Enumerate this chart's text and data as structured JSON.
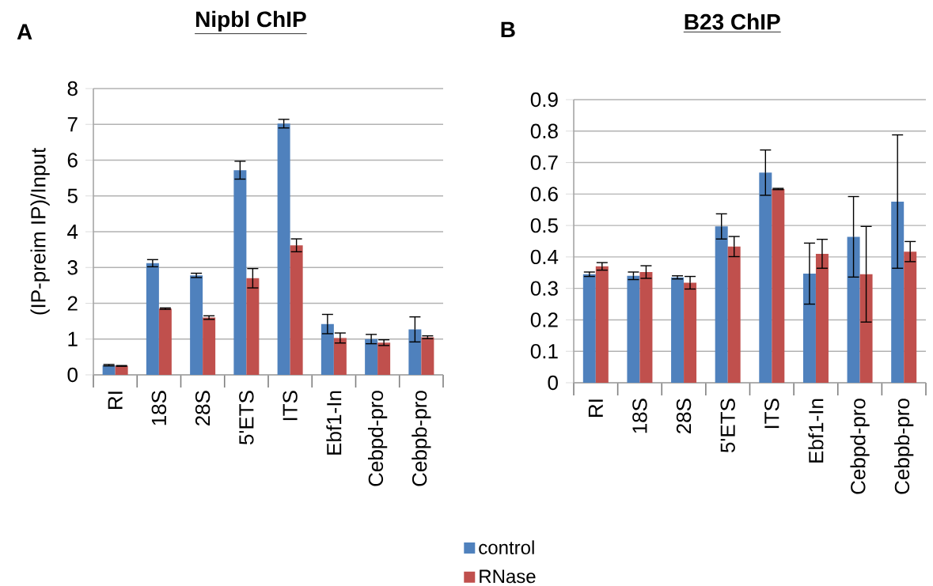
{
  "chart_data": [
    {
      "type": "bar",
      "title": "Nipbl ChIP",
      "ylabel": "(IP-preim IP)/Input",
      "annotations": [
        "A"
      ],
      "categories": [
        "RI",
        "18S",
        "28S",
        "5'ETS",
        "ITS",
        "Ebf1-In",
        "Cebpd-pro",
        "Cebpb-pro"
      ],
      "series": [
        {
          "name": "control",
          "color": "#4f81bd",
          "values": [
            0.27,
            3.12,
            2.78,
            5.72,
            7.02,
            1.42,
            1.0,
            1.27
          ],
          "errors": [
            0.02,
            0.1,
            0.06,
            0.25,
            0.12,
            0.27,
            0.13,
            0.35
          ]
        },
        {
          "name": "RNase",
          "color": "#c0504d",
          "values": [
            0.25,
            1.85,
            1.6,
            2.7,
            3.62,
            1.03,
            0.9,
            1.05
          ],
          "errors": [
            0.01,
            0.02,
            0.05,
            0.27,
            0.18,
            0.14,
            0.08,
            0.04
          ]
        }
      ],
      "ylim": [
        0,
        8
      ],
      "yticks": [
        0,
        1,
        2,
        3,
        4,
        5,
        6,
        7,
        8
      ],
      "grid": "y",
      "legend": "bottom"
    },
    {
      "type": "bar",
      "title": "B23 ChIP",
      "annotations": [
        "B"
      ],
      "categories": [
        "RI",
        "18S",
        "28S",
        "5'ETS",
        "ITS",
        "Ebf1-In",
        "Cebpd-pro",
        "Cebpb-pro"
      ],
      "series": [
        {
          "color": "#4f81bd",
          "values": [
            0.345,
            0.34,
            0.335,
            0.497,
            0.668,
            0.347,
            0.464,
            0.576
          ],
          "errors": [
            0.007,
            0.012,
            0.005,
            0.04,
            0.072,
            0.097,
            0.128,
            0.212
          ]
        },
        {
          "color": "#c0504d",
          "values": [
            0.37,
            0.352,
            0.318,
            0.433,
            0.616,
            0.41,
            0.345,
            0.417
          ],
          "errors": [
            0.012,
            0.02,
            0.02,
            0.032,
            0.002,
            0.046,
            0.152,
            0.032
          ]
        }
      ],
      "ylim": [
        0,
        0.9
      ],
      "yticks": [
        0,
        0.1,
        0.2,
        0.3,
        0.4,
        0.5,
        0.6,
        0.7,
        0.8,
        0.9
      ],
      "grid": "y"
    }
  ]
}
